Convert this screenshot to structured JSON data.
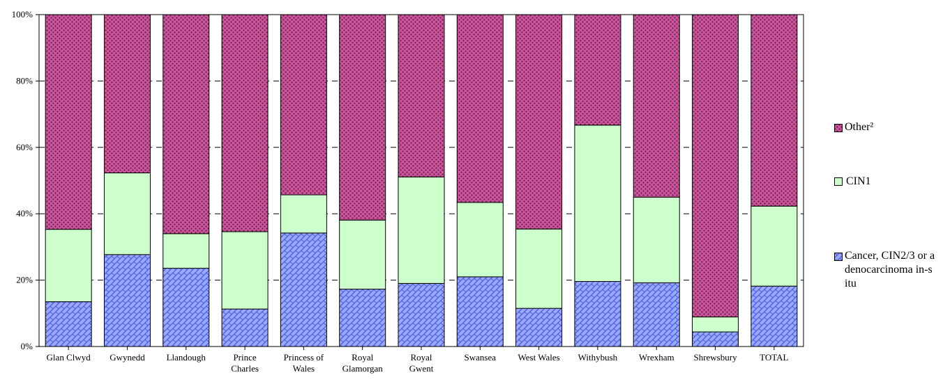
{
  "colors": {
    "cancer_fill": "#9aa8ff",
    "cancer_pattern": "#4a5cd6",
    "cin1_fill": "#ccffcc",
    "other_fill": "#c9559a",
    "other_pattern": "#6e1a4a",
    "grid": "#000000"
  },
  "chart_data": {
    "type": "bar",
    "stacked": true,
    "percent": true,
    "categories": [
      [
        "Glan Clwyd"
      ],
      [
        "Gwynedd"
      ],
      [
        "Llandough"
      ],
      [
        "Prince",
        "Charles"
      ],
      [
        "Princess of",
        "Wales"
      ],
      [
        "Royal",
        "Glamorgan"
      ],
      [
        "Royal",
        "Gwent"
      ],
      [
        "Swansea"
      ],
      [
        "West Wales"
      ],
      [
        "Withybush"
      ],
      [
        "Wrexham"
      ],
      [
        "Shrewsbury"
      ],
      [
        "TOTAL"
      ]
    ],
    "y_ticks": [
      "0%",
      "20%",
      "40%",
      "60%",
      "80%",
      "100%"
    ],
    "ylim": [
      0,
      100
    ],
    "grid": "dashed horizontal",
    "legend_position": "right",
    "series": [
      {
        "name": "Cancer, CIN2/3 or adenocarcinoma in-situ",
        "key": "cancer",
        "values": [
          13.5,
          27.7,
          23.6,
          11.3,
          34.2,
          17.3,
          19.0,
          21.0,
          11.5,
          19.6,
          19.2,
          4.4,
          18.2
        ]
      },
      {
        "name": "CIN1",
        "key": "cin1",
        "values": [
          21.8,
          24.6,
          10.4,
          23.3,
          11.5,
          20.8,
          32.1,
          22.4,
          23.9,
          47.1,
          25.8,
          4.5,
          24.1
        ]
      },
      {
        "name": "Other²",
        "key": "other",
        "values": [
          64.7,
          47.7,
          66.0,
          65.4,
          54.3,
          61.9,
          48.9,
          56.6,
          64.6,
          33.3,
          55.0,
          91.1,
          57.7
        ]
      }
    ]
  },
  "legend": {
    "items": [
      {
        "key": "other",
        "label": "Other²"
      },
      {
        "key": "cin1",
        "label": "CIN1"
      },
      {
        "key": "cancer",
        "label": "Cancer, CIN2/3 or adenocarcinoma in-situ"
      }
    ]
  }
}
